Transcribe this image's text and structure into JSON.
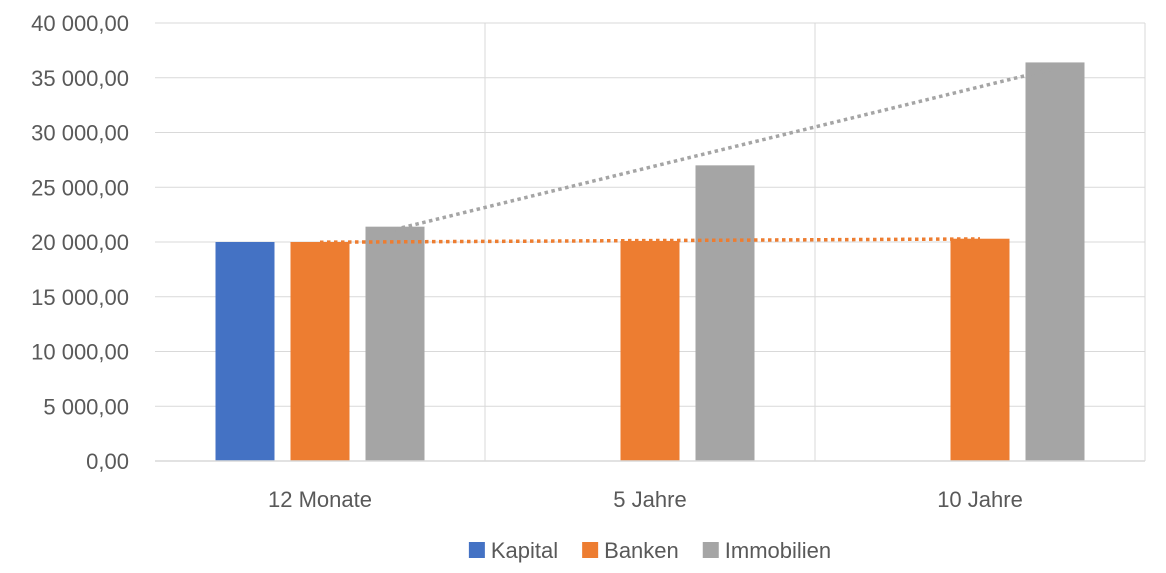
{
  "chart_data": {
    "type": "bar",
    "title": "",
    "xlabel": "",
    "ylabel": "",
    "categories": [
      "12 Monate",
      "5 Jahre",
      "10 Jahre"
    ],
    "ylim": [
      0,
      40000
    ],
    "ytick_values": [
      0,
      5000,
      10000,
      15000,
      20000,
      25000,
      30000,
      35000,
      40000
    ],
    "ytick_labels": [
      "0,00",
      "5 000,00",
      "10 000,00",
      "15 000,00",
      "20 000,00",
      "25 000,00",
      "30 000,00",
      "35 000,00",
      "40 000,00"
    ],
    "grid": true,
    "legend_position": "bottom",
    "series": [
      {
        "name": "Kapital",
        "color": "#4472C4",
        "values": [
          20000,
          null,
          null
        ]
      },
      {
        "name": "Banken",
        "color": "#ED7D31",
        "values": [
          20000,
          20100,
          20300
        ]
      },
      {
        "name": "Immobilien",
        "color": "#A5A5A5",
        "values": [
          21400,
          27000,
          36400
        ]
      }
    ],
    "trendlines": [
      {
        "series": "Banken",
        "type": "linear",
        "color": "#ED7D31",
        "style": "dotted",
        "values": [
          19980,
          20130,
          20280
        ]
      },
      {
        "series": "Immobilien",
        "type": "linear",
        "color": "#A5A5A5",
        "style": "dotted",
        "values": [
          21150,
          28500,
          35850
        ]
      }
    ]
  }
}
